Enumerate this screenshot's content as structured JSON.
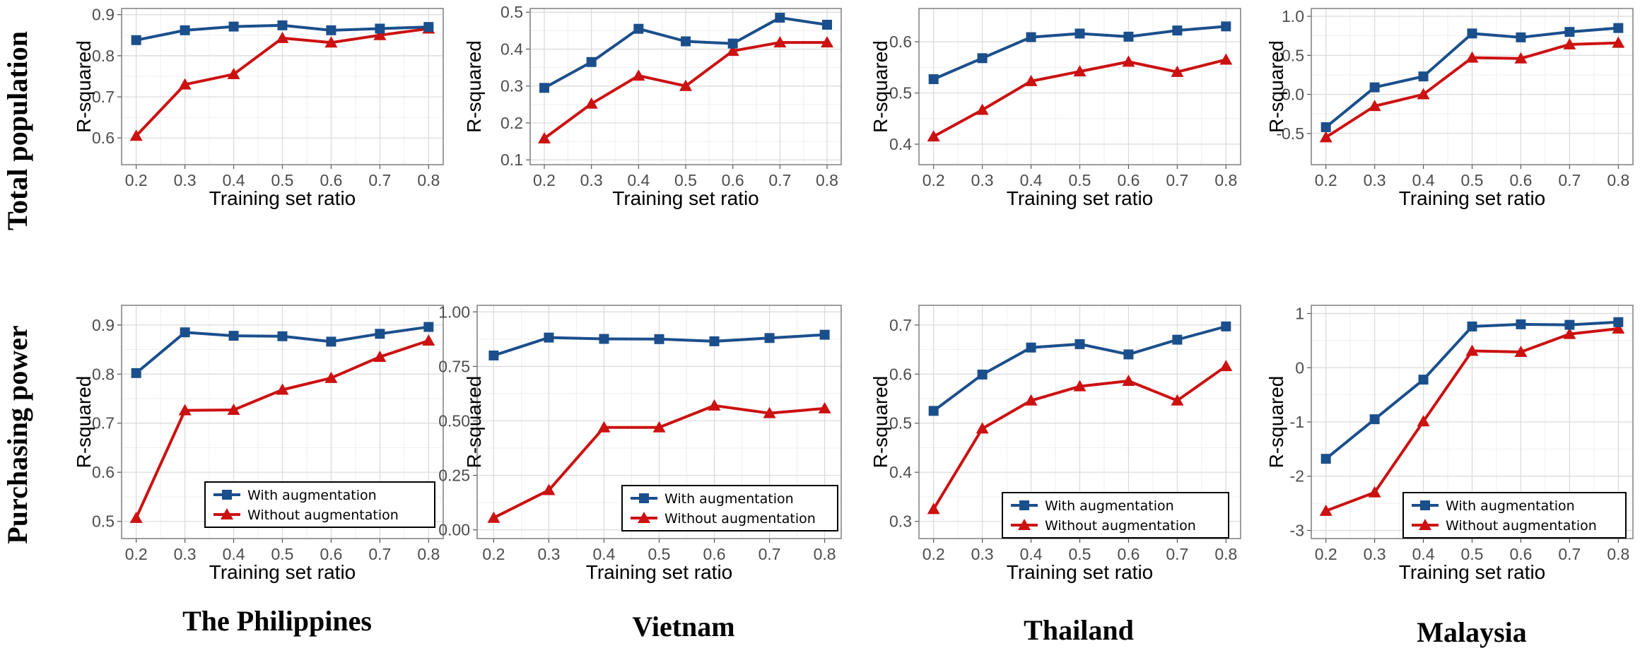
{
  "row_labels": [
    "Total population",
    "Purchasing power"
  ],
  "col_labels": [
    "The Philippines",
    "Vietnam",
    "Thailand",
    "Malaysia"
  ],
  "legend": [
    "With augmentation",
    "Without augmentation"
  ],
  "colors": {
    "with": "#1b4f8c",
    "without": "#cc1111",
    "grid_major": "#d9d9d9",
    "grid_minor": "#efefef",
    "frame": "#7f7f7f"
  },
  "chart_data": [
    {
      "type": "line",
      "row": "Total population",
      "country": "The Philippines",
      "xlabel": "Training set ratio",
      "ylabel": "R-squared",
      "x": [
        0.2,
        0.3,
        0.4,
        0.5,
        0.6,
        0.7,
        0.8
      ],
      "xtick_labels": [
        "0.2",
        "0.3",
        "0.4",
        "0.5",
        "0.6",
        "0.7",
        "0.8"
      ],
      "ylim": [
        0.535,
        0.915
      ],
      "yticks": [
        0.6,
        0.7,
        0.8,
        0.9
      ],
      "ytick_labels": [
        "0.6",
        "0.7",
        "0.8",
        "0.9"
      ],
      "legend": false,
      "series": [
        {
          "name": "With augmentation",
          "marker": "square",
          "values": [
            0.838,
            0.862,
            0.871,
            0.874,
            0.862,
            0.866,
            0.87
          ]
        },
        {
          "name": "Without augmentation",
          "marker": "triangle",
          "values": [
            0.605,
            0.73,
            0.755,
            0.843,
            0.832,
            0.85,
            0.866
          ]
        }
      ]
    },
    {
      "type": "line",
      "row": "Total population",
      "country": "Vietnam",
      "xlabel": "Training set ratio",
      "ylabel": "R-squared",
      "x": [
        0.2,
        0.3,
        0.4,
        0.5,
        0.6,
        0.7,
        0.8
      ],
      "xtick_labels": [
        "0.2",
        "0.3",
        "0.4",
        "0.5",
        "0.6",
        "0.7",
        "0.8"
      ],
      "ylim": [
        0.087,
        0.51
      ],
      "yticks": [
        0.1,
        0.2,
        0.3,
        0.4,
        0.5
      ],
      "ytick_labels": [
        "0.1",
        "0.2",
        "0.3",
        "0.4",
        "0.5"
      ],
      "legend": false,
      "series": [
        {
          "name": "With augmentation",
          "marker": "square",
          "values": [
            0.295,
            0.365,
            0.455,
            0.421,
            0.415,
            0.485,
            0.466
          ]
        },
        {
          "name": "Without augmentation",
          "marker": "triangle",
          "values": [
            0.158,
            0.252,
            0.328,
            0.3,
            0.395,
            0.418,
            0.418
          ]
        }
      ]
    },
    {
      "type": "line",
      "row": "Total population",
      "country": "Thailand",
      "xlabel": "Training set ratio",
      "ylabel": "R-squared",
      "x": [
        0.2,
        0.3,
        0.4,
        0.5,
        0.6,
        0.7,
        0.8
      ],
      "xtick_labels": [
        "0.2",
        "0.3",
        "0.4",
        "0.5",
        "0.6",
        "0.7",
        "0.8"
      ],
      "ylim": [
        0.36,
        0.665
      ],
      "yticks": [
        0.4,
        0.5,
        0.6
      ],
      "ytick_labels": [
        "0.4",
        "0.5",
        "0.6"
      ],
      "legend": false,
      "series": [
        {
          "name": "With augmentation",
          "marker": "square",
          "values": [
            0.527,
            0.568,
            0.609,
            0.616,
            0.61,
            0.622,
            0.63
          ]
        },
        {
          "name": "Without augmentation",
          "marker": "triangle",
          "values": [
            0.415,
            0.467,
            0.523,
            0.542,
            0.561,
            0.541,
            0.565
          ]
        }
      ]
    },
    {
      "type": "line",
      "row": "Total population",
      "country": "Malaysia",
      "xlabel": "Training set ratio",
      "ylabel": "R-squared",
      "x": [
        0.2,
        0.3,
        0.4,
        0.5,
        0.6,
        0.7,
        0.8
      ],
      "xtick_labels": [
        "0.2",
        "0.3",
        "0.4",
        "0.5",
        "0.6",
        "0.7",
        "0.8"
      ],
      "ylim": [
        -0.9,
        1.1
      ],
      "yticks": [
        -0.5,
        0.0,
        0.5,
        1.0
      ],
      "ytick_labels": [
        "-0.5",
        "0.0",
        "0.5",
        "1.0"
      ],
      "legend": false,
      "series": [
        {
          "name": "With augmentation",
          "marker": "square",
          "values": [
            -0.42,
            0.09,
            0.23,
            0.78,
            0.73,
            0.8,
            0.85
          ]
        },
        {
          "name": "Without augmentation",
          "marker": "triangle",
          "values": [
            -0.55,
            -0.15,
            0.0,
            0.47,
            0.46,
            0.64,
            0.66
          ]
        }
      ]
    },
    {
      "type": "line",
      "row": "Purchasing power",
      "country": "The Philippines",
      "xlabel": "Training set ratio",
      "ylabel": "R-squared",
      "x": [
        0.2,
        0.3,
        0.4,
        0.5,
        0.6,
        0.7,
        0.8
      ],
      "xtick_labels": [
        "0.2",
        "0.3",
        "0.4",
        "0.5",
        "0.6",
        "0.7",
        "0.8"
      ],
      "ylim": [
        0.465,
        0.94
      ],
      "yticks": [
        0.5,
        0.6,
        0.7,
        0.8,
        0.9
      ],
      "ytick_labels": [
        "0.5",
        "0.6",
        "0.7",
        "0.8",
        "0.9"
      ],
      "legend": true,
      "series": [
        {
          "name": "With augmentation",
          "marker": "square",
          "values": [
            0.802,
            0.885,
            0.878,
            0.877,
            0.866,
            0.882,
            0.896
          ]
        },
        {
          "name": "Without augmentation",
          "marker": "triangle",
          "values": [
            0.507,
            0.726,
            0.727,
            0.768,
            0.792,
            0.835,
            0.868
          ]
        }
      ]
    },
    {
      "type": "line",
      "row": "Purchasing power",
      "country": "Vietnam",
      "xlabel": "Training set ratio",
      "ylabel": "R-squared",
      "x": [
        0.2,
        0.3,
        0.4,
        0.5,
        0.6,
        0.7,
        0.8
      ],
      "xtick_labels": [
        "0.2",
        "0.3",
        "0.4",
        "0.5",
        "0.6",
        "0.7",
        "0.8"
      ],
      "ylim": [
        -0.04,
        1.03
      ],
      "yticks": [
        0.0,
        0.25,
        0.5,
        0.75,
        1.0
      ],
      "ytick_labels": [
        "0.00",
        "0.25",
        "0.50",
        "0.75",
        "1.00"
      ],
      "legend": true,
      "series": [
        {
          "name": "With augmentation",
          "marker": "square",
          "values": [
            0.8,
            0.882,
            0.876,
            0.875,
            0.865,
            0.88,
            0.895
          ]
        },
        {
          "name": "Without augmentation",
          "marker": "triangle",
          "values": [
            0.055,
            0.182,
            0.47,
            0.47,
            0.57,
            0.535,
            0.557
          ]
        }
      ]
    },
    {
      "type": "line",
      "row": "Purchasing power",
      "country": "Thailand",
      "xlabel": "Training set ratio",
      "ylabel": "R-squared",
      "x": [
        0.2,
        0.3,
        0.4,
        0.5,
        0.6,
        0.7,
        0.8
      ],
      "xtick_labels": [
        "0.2",
        "0.3",
        "0.4",
        "0.5",
        "0.6",
        "0.7",
        "0.8"
      ],
      "ylim": [
        0.265,
        0.74
      ],
      "yticks": [
        0.3,
        0.4,
        0.5,
        0.6,
        0.7
      ],
      "ytick_labels": [
        "0.3",
        "0.4",
        "0.5",
        "0.6",
        "0.7"
      ],
      "legend": true,
      "series": [
        {
          "name": "With augmentation",
          "marker": "square",
          "values": [
            0.525,
            0.599,
            0.654,
            0.661,
            0.64,
            0.67,
            0.697
          ]
        },
        {
          "name": "Without augmentation",
          "marker": "triangle",
          "values": [
            0.325,
            0.489,
            0.546,
            0.575,
            0.586,
            0.546,
            0.616
          ]
        }
      ]
    },
    {
      "type": "line",
      "row": "Purchasing power",
      "country": "Malaysia",
      "xlabel": "Training set ratio",
      "ylabel": "R-squared",
      "x": [
        0.2,
        0.3,
        0.4,
        0.5,
        0.6,
        0.7,
        0.8
      ],
      "xtick_labels": [
        "0.2",
        "0.3",
        "0.4",
        "0.5",
        "0.6",
        "0.7",
        "0.8"
      ],
      "ylim": [
        -3.15,
        1.15
      ],
      "yticks": [
        -3,
        -2,
        -1,
        0,
        1
      ],
      "ytick_labels": [
        "-3",
        "-2",
        "-1",
        "0",
        "1"
      ],
      "legend": true,
      "series": [
        {
          "name": "With augmentation",
          "marker": "square",
          "values": [
            -1.68,
            -0.95,
            -0.22,
            0.76,
            0.8,
            0.79,
            0.84
          ]
        },
        {
          "name": "Without augmentation",
          "marker": "triangle",
          "values": [
            -2.64,
            -2.3,
            -0.99,
            0.31,
            0.29,
            0.62,
            0.72
          ]
        }
      ]
    }
  ]
}
